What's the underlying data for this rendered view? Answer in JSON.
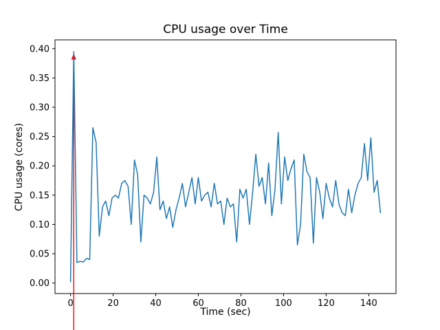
{
  "chart_data": {
    "type": "line",
    "title": "CPU usage over Time",
    "xlabel": "Time (sec)",
    "ylabel": "CPU usage (cores)",
    "xlim": [
      -7.3,
      152.8
    ],
    "ylim": [
      -0.018,
      0.415
    ],
    "xticks": [
      0,
      20,
      40,
      60,
      80,
      100,
      120,
      140
    ],
    "yticks": [
      0.0,
      0.05,
      0.1,
      0.15,
      0.2,
      0.25,
      0.3,
      0.35,
      0.4
    ],
    "grid": false,
    "legend": "none",
    "line_color": "#1f77b4",
    "annotation": {
      "type": "vertical-arrow",
      "color": "#ff0000",
      "x": 1.5,
      "y_tip": 0.392,
      "extends_below_axes": true
    },
    "x": [
      0,
      1.5,
      3,
      4.5,
      6,
      7.5,
      9,
      10.5,
      12,
      13.5,
      15,
      16.5,
      18,
      19.5,
      21,
      22.5,
      24,
      25.5,
      27,
      28.5,
      30,
      31.5,
      33,
      34.5,
      36,
      37.5,
      39,
      40.5,
      42,
      43.5,
      45,
      46.5,
      48,
      49.5,
      51,
      52.5,
      54,
      55.5,
      57,
      58.5,
      60,
      61.5,
      63,
      64.5,
      66,
      67.5,
      69,
      70.5,
      72,
      73.5,
      75,
      76.5,
      78,
      79.5,
      81,
      82.5,
      84,
      85.5,
      87,
      88.5,
      90,
      91.5,
      93,
      94.5,
      96,
      97.5,
      99,
      100.5,
      102,
      103.5,
      105,
      106.5,
      108,
      109.5,
      111,
      112.5,
      114,
      115.5,
      117,
      118.5,
      120,
      121.5,
      123,
      124.5,
      126,
      127.5,
      129,
      130.5,
      132,
      133.5,
      135,
      136.5,
      138,
      139.5,
      141,
      142.5,
      144,
      145.5
    ],
    "values": [
      0.002,
      0.395,
      0.035,
      0.037,
      0.036,
      0.042,
      0.04,
      0.265,
      0.24,
      0.08,
      0.13,
      0.14,
      0.115,
      0.145,
      0.15,
      0.145,
      0.17,
      0.175,
      0.165,
      0.1,
      0.21,
      0.185,
      0.07,
      0.15,
      0.145,
      0.135,
      0.155,
      0.215,
      0.125,
      0.14,
      0.11,
      0.13,
      0.095,
      0.125,
      0.145,
      0.17,
      0.13,
      0.155,
      0.18,
      0.135,
      0.18,
      0.14,
      0.15,
      0.155,
      0.13,
      0.17,
      0.135,
      0.14,
      0.1,
      0.145,
      0.13,
      0.135,
      0.07,
      0.16,
      0.145,
      0.16,
      0.1,
      0.155,
      0.22,
      0.165,
      0.18,
      0.135,
      0.205,
      0.115,
      0.16,
      0.257,
      0.135,
      0.215,
      0.175,
      0.195,
      0.21,
      0.065,
      0.1,
      0.22,
      0.19,
      0.18,
      0.068,
      0.18,
      0.155,
      0.11,
      0.17,
      0.145,
      0.13,
      0.175,
      0.135,
      0.12,
      0.115,
      0.16,
      0.12,
      0.15,
      0.17,
      0.18,
      0.238,
      0.175,
      0.248,
      0.155,
      0.175,
      0.12
    ]
  }
}
